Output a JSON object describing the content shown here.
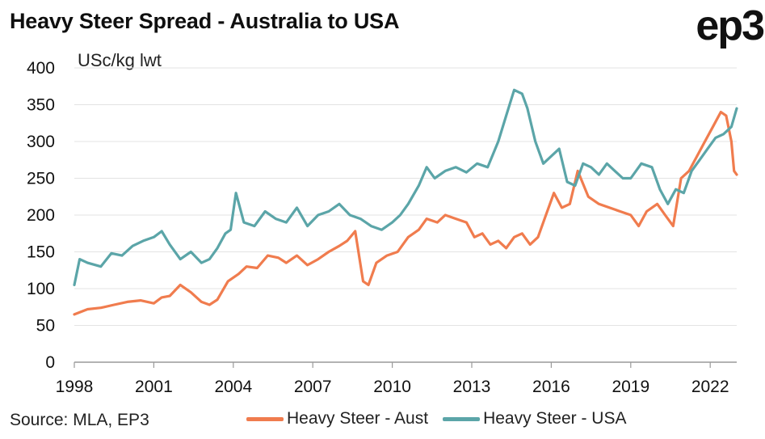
{
  "title": "Heavy Steer Spread - Australia to USA",
  "logo": "ep3",
  "source": "Source: MLA, EP3",
  "chart_data": {
    "type": "line",
    "title": "Heavy Steer Spread - Australia to USA",
    "ylabel": "USc/kg lwt",
    "xlabel": "",
    "ylim": [
      0,
      400
    ],
    "xlim": [
      1998.0,
      2023.0
    ],
    "yticks": [
      "0",
      "50",
      "100",
      "150",
      "200",
      "250",
      "300",
      "350",
      "400"
    ],
    "xticks": [
      "1998",
      "2001",
      "2004",
      "2007",
      "2010",
      "2013",
      "2016",
      "2019",
      "2022"
    ],
    "grid": "horizontal",
    "legend_position": "bottom",
    "series": [
      {
        "name": "Heavy Steer - Aust",
        "color": "#F07C4E",
        "x": [
          1998.0,
          1998.5,
          1999.0,
          1999.5,
          2000.0,
          2000.5,
          2001.0,
          2001.3,
          2001.6,
          2002.0,
          2002.4,
          2002.8,
          2003.1,
          2003.4,
          2003.8,
          2004.2,
          2004.5,
          2004.9,
          2005.3,
          2005.7,
          2006.0,
          2006.4,
          2006.8,
          2007.2,
          2007.6,
          2008.0,
          2008.3,
          2008.6,
          2008.9,
          2009.1,
          2009.4,
          2009.8,
          2010.2,
          2010.6,
          2011.0,
          2011.3,
          2011.7,
          2012.0,
          2012.4,
          2012.8,
          2013.1,
          2013.4,
          2013.7,
          2014.0,
          2014.3,
          2014.6,
          2014.9,
          2015.2,
          2015.5,
          2015.8,
          2016.1,
          2016.4,
          2016.7,
          2017.0,
          2017.4,
          2017.8,
          2018.2,
          2018.6,
          2019.0,
          2019.3,
          2019.6,
          2020.0,
          2020.3,
          2020.6,
          2020.9,
          2021.2,
          2021.5,
          2021.8,
          2022.1,
          2022.4,
          2022.6,
          2022.8,
          2022.9,
          2023.0
        ],
        "values": [
          65,
          72,
          74,
          78,
          82,
          84,
          80,
          88,
          90,
          105,
          95,
          82,
          78,
          85,
          110,
          120,
          130,
          128,
          145,
          142,
          135,
          145,
          132,
          140,
          150,
          158,
          165,
          178,
          110,
          105,
          135,
          145,
          150,
          170,
          180,
          195,
          190,
          200,
          195,
          190,
          170,
          175,
          160,
          165,
          155,
          170,
          175,
          160,
          170,
          200,
          230,
          210,
          215,
          260,
          225,
          215,
          210,
          205,
          200,
          185,
          205,
          215,
          200,
          185,
          250,
          260,
          280,
          300,
          320,
          340,
          335,
          300,
          260,
          255
        ]
      },
      {
        "name": "Heavy Steer - USA",
        "color": "#5BA5A8",
        "x": [
          1998.0,
          1998.2,
          1998.5,
          1999.0,
          1999.4,
          1999.8,
          2000.2,
          2000.6,
          2001.0,
          2001.3,
          2001.6,
          2002.0,
          2002.4,
          2002.8,
          2003.1,
          2003.4,
          2003.7,
          2003.9,
          2004.1,
          2004.4,
          2004.8,
          2005.2,
          2005.6,
          2006.0,
          2006.4,
          2006.8,
          2007.2,
          2007.6,
          2008.0,
          2008.4,
          2008.8,
          2009.2,
          2009.6,
          2010.0,
          2010.3,
          2010.6,
          2011.0,
          2011.3,
          2011.6,
          2012.0,
          2012.4,
          2012.8,
          2013.2,
          2013.6,
          2014.0,
          2014.3,
          2014.6,
          2014.9,
          2015.1,
          2015.4,
          2015.7,
          2016.0,
          2016.3,
          2016.6,
          2016.9,
          2017.2,
          2017.5,
          2017.8,
          2018.1,
          2018.4,
          2018.7,
          2019.0,
          2019.4,
          2019.8,
          2020.1,
          2020.4,
          2020.7,
          2021.0,
          2021.3,
          2021.6,
          2021.9,
          2022.2,
          2022.5,
          2022.8,
          2023.0
        ],
        "values": [
          105,
          140,
          135,
          130,
          148,
          145,
          158,
          165,
          170,
          178,
          160,
          140,
          150,
          135,
          140,
          155,
          175,
          180,
          230,
          190,
          185,
          205,
          195,
          190,
          210,
          185,
          200,
          205,
          215,
          200,
          195,
          185,
          180,
          190,
          200,
          215,
          240,
          265,
          250,
          260,
          265,
          258,
          270,
          265,
          300,
          335,
          370,
          365,
          345,
          300,
          270,
          280,
          290,
          245,
          240,
          270,
          265,
          255,
          270,
          260,
          250,
          250,
          270,
          265,
          235,
          215,
          235,
          230,
          260,
          275,
          290,
          305,
          310,
          320,
          345
        ]
      }
    ]
  }
}
